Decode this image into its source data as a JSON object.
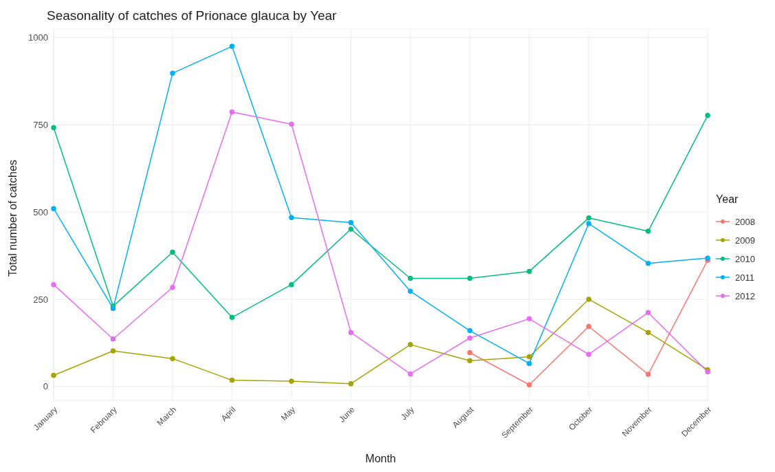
{
  "chart_data": {
    "type": "line",
    "title": "Seasonality of catches of Prionace glauca by Year",
    "xlabel": "Month",
    "ylabel": "Total number of catches",
    "legend_title": "Year",
    "categories": [
      "January",
      "February",
      "March",
      "April",
      "May",
      "June",
      "July",
      "August",
      "September",
      "October",
      "November",
      "December"
    ],
    "series": [
      {
        "name": "2008",
        "color": "#f8766d",
        "values": [
          null,
          null,
          null,
          null,
          null,
          null,
          null,
          97,
          5,
          172,
          35,
          362
        ]
      },
      {
        "name": "2009",
        "color": "#a3a500",
        "values": [
          32,
          102,
          80,
          18,
          15,
          8,
          120,
          74,
          85,
          250,
          155,
          48
        ]
      },
      {
        "name": "2010",
        "color": "#00bf7d",
        "values": [
          742,
          230,
          385,
          198,
          292,
          451,
          310,
          310,
          330,
          483,
          445,
          777
        ]
      },
      {
        "name": "2011",
        "color": "#00b0f6",
        "values": [
          510,
          224,
          898,
          975,
          484,
          470,
          273,
          160,
          66,
          467,
          353,
          368
        ]
      },
      {
        "name": "2012",
        "color": "#e76bf3",
        "values": [
          292,
          136,
          284,
          787,
          752,
          155,
          36,
          139,
          194,
          92,
          212,
          42
        ]
      }
    ],
    "ylim": [
      -40,
      1025
    ],
    "yticks": [
      0,
      250,
      500,
      750,
      1000
    ],
    "grid": true,
    "legend": "right",
    "marker": "circle",
    "line_style": "solid"
  }
}
